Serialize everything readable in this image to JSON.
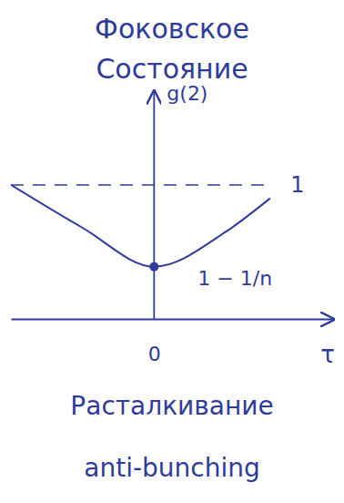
{
  "chart_data": {
    "type": "line",
    "title": "Фоковское Состояние",
    "x_label": "τ",
    "y_label": "g(2)",
    "x": [
      -1,
      -0.5,
      0,
      0.5,
      0.81
    ],
    "values": [
      1.0,
      0.68,
      0.39,
      0.65,
      0.9
    ],
    "color": "#2f3b9c",
    "xlim": [
      -1,
      1.25
    ],
    "xticks": [
      0
    ],
    "ylim": [
      0,
      1.7
    ],
    "yticks": [
      1
    ],
    "grid": true,
    "annotations": [
      {
        "text": "1 − 1/n",
        "x": 0,
        "y": 0.39
      }
    ],
    "captions": [
      "Расталкивание",
      "anti-bunching"
    ]
  }
}
